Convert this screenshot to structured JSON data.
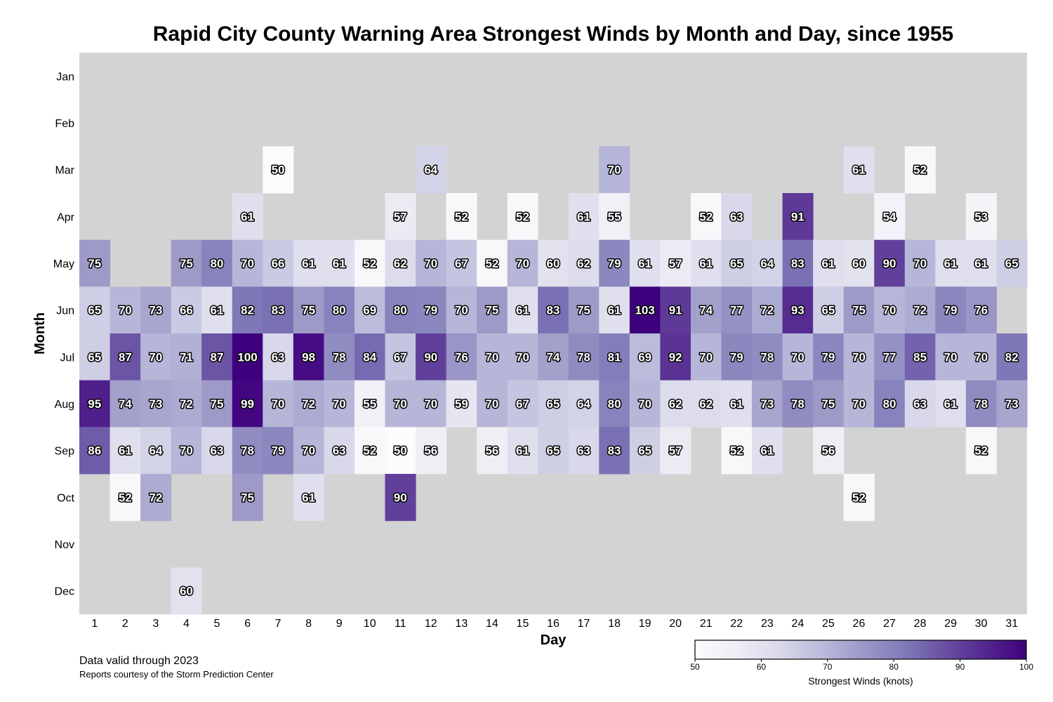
{
  "chart_data": {
    "type": "heatmap",
    "title": "Rapid City County Warning Area Strongest Winds by Month and Day, since 1955",
    "xlabel": "Day",
    "ylabel": "Month",
    "x_categories": [
      "1",
      "2",
      "3",
      "4",
      "5",
      "6",
      "7",
      "8",
      "9",
      "10",
      "11",
      "12",
      "13",
      "14",
      "15",
      "16",
      "17",
      "18",
      "19",
      "20",
      "21",
      "22",
      "23",
      "24",
      "25",
      "26",
      "27",
      "28",
      "29",
      "30",
      "31"
    ],
    "y_categories": [
      "Jan",
      "Feb",
      "Mar",
      "Apr",
      "May",
      "Jun",
      "Jul",
      "Aug",
      "Sep",
      "Oct",
      "Nov",
      "Dec"
    ],
    "colorbar": {
      "label": "Strongest Winds (knots)",
      "range": [
        50,
        100
      ],
      "ticks": [
        "50",
        "60",
        "70",
        "80",
        "90",
        "100"
      ],
      "colormap": "Purples",
      "colors": [
        "#fcfbfd",
        "#efedf5",
        "#dadaeb",
        "#bcbddc",
        "#9e9ac8",
        "#807dba",
        "#6a51a3",
        "#54278f",
        "#3f007d"
      ]
    },
    "missing_color": "#d3d3d3",
    "grid": false,
    "values": [
      [
        null,
        null,
        null,
        null,
        null,
        null,
        null,
        null,
        null,
        null,
        null,
        null,
        null,
        null,
        null,
        null,
        null,
        null,
        null,
        null,
        null,
        null,
        null,
        null,
        null,
        null,
        null,
        null,
        null,
        null,
        null
      ],
      [
        null,
        null,
        null,
        null,
        null,
        null,
        null,
        null,
        null,
        null,
        null,
        null,
        null,
        null,
        null,
        null,
        null,
        null,
        null,
        null,
        null,
        null,
        null,
        null,
        null,
        null,
        null,
        null,
        null,
        null,
        null
      ],
      [
        null,
        null,
        null,
        null,
        null,
        null,
        50,
        null,
        null,
        null,
        null,
        64,
        null,
        null,
        null,
        null,
        null,
        70,
        null,
        null,
        null,
        null,
        null,
        null,
        null,
        61,
        null,
        52,
        null,
        null,
        null
      ],
      [
        null,
        null,
        null,
        null,
        null,
        61,
        null,
        null,
        null,
        null,
        57,
        null,
        52,
        null,
        52,
        null,
        61,
        55,
        null,
        null,
        52,
        63,
        null,
        91,
        null,
        null,
        54,
        null,
        null,
        53,
        null
      ],
      [
        75,
        null,
        null,
        75,
        80,
        70,
        66,
        61,
        61,
        52,
        62,
        70,
        67,
        52,
        70,
        60,
        62,
        79,
        61,
        57,
        61,
        65,
        64,
        83,
        61,
        60,
        90,
        70,
        61,
        61,
        65
      ],
      [
        65,
        70,
        73,
        66,
        61,
        82,
        83,
        75,
        80,
        69,
        80,
        79,
        70,
        75,
        61,
        83,
        75,
        61,
        103,
        91,
        74,
        77,
        72,
        93,
        65,
        75,
        70,
        72,
        79,
        76,
        null
      ],
      [
        65,
        87,
        70,
        71,
        87,
        100,
        63,
        98,
        78,
        84,
        67,
        90,
        76,
        70,
        70,
        74,
        78,
        81,
        69,
        92,
        70,
        79,
        78,
        70,
        79,
        70,
        77,
        85,
        70,
        70,
        82
      ],
      [
        95,
        74,
        73,
        72,
        75,
        99,
        70,
        72,
        70,
        55,
        70,
        70,
        59,
        70,
        67,
        65,
        64,
        80,
        70,
        62,
        62,
        61,
        73,
        78,
        75,
        70,
        80,
        63,
        61,
        78,
        73
      ],
      [
        86,
        61,
        64,
        70,
        63,
        78,
        79,
        70,
        63,
        52,
        50,
        56,
        null,
        56,
        61,
        65,
        63,
        83,
        65,
        57,
        null,
        52,
        61,
        null,
        56,
        null,
        null,
        null,
        null,
        52,
        null
      ],
      [
        null,
        52,
        72,
        null,
        null,
        75,
        null,
        61,
        null,
        null,
        90,
        null,
        null,
        null,
        null,
        null,
        null,
        null,
        null,
        null,
        null,
        null,
        null,
        null,
        null,
        52,
        null,
        null,
        null,
        null,
        null
      ],
      [
        null,
        null,
        null,
        null,
        null,
        null,
        null,
        null,
        null,
        null,
        null,
        null,
        null,
        null,
        null,
        null,
        null,
        null,
        null,
        null,
        null,
        null,
        null,
        null,
        null,
        null,
        null,
        null,
        null,
        null,
        null
      ],
      [
        null,
        null,
        null,
        60,
        null,
        null,
        null,
        null,
        null,
        null,
        null,
        null,
        null,
        null,
        null,
        null,
        null,
        null,
        null,
        null,
        null,
        null,
        null,
        null,
        null,
        null,
        null,
        null,
        null,
        null,
        null
      ]
    ]
  },
  "notes": {
    "valid": "Data valid through 2023",
    "courtesy": "Reports courtesy of the Storm Prediction Center"
  }
}
